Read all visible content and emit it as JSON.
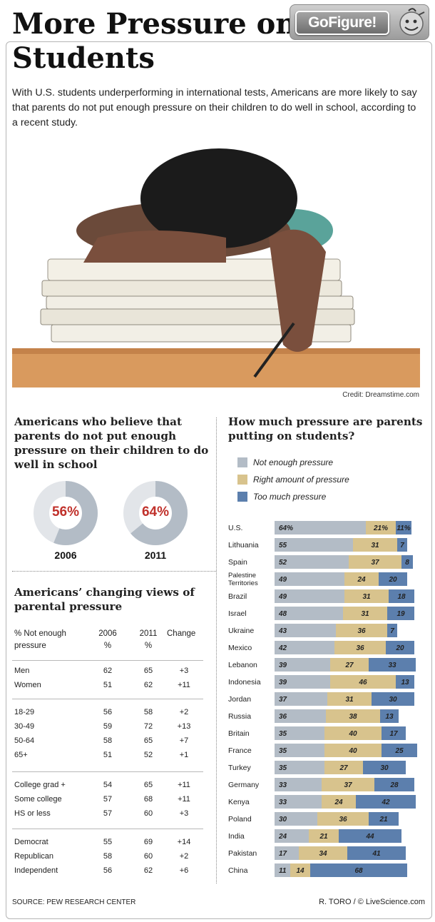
{
  "header": {
    "title": "More Pressure on Students",
    "badge": "GoFigure!",
    "intro": "With U.S. students underperforming in international tests, Americans are more likely to say that parents do not put enough pressure on their children to do well in school, according to a recent study.",
    "photo_credit": "Credit: Dreamstime.com"
  },
  "donuts": {
    "title": "Americans who believe that parents do not put enough pressure on their children to do well in school",
    "items": [
      {
        "year": "2006",
        "value": 56,
        "label": "56%"
      },
      {
        "year": "2011",
        "value": 64,
        "label": "64%"
      }
    ]
  },
  "table": {
    "title": "Americans’ changing views of parental pressure",
    "headers": {
      "label_line1": "% Not enough",
      "label_line2": "pressure",
      "col1_line1": "2006",
      "col1_line2": "%",
      "col2_line1": "2011",
      "col2_line2": "%",
      "col3": "Change"
    },
    "groups": [
      [
        {
          "label": "Men",
          "v2006": "62",
          "v2011": "65",
          "change": "+3"
        },
        {
          "label": "Women",
          "v2006": "51",
          "v2011": "62",
          "change": "+11"
        }
      ],
      [
        {
          "label": "18-29",
          "v2006": "56",
          "v2011": "58",
          "change": "+2"
        },
        {
          "label": "30-49",
          "v2006": "59",
          "v2011": "72",
          "change": "+13"
        },
        {
          "label": "50-64",
          "v2006": "58",
          "v2011": "65",
          "change": "+7"
        },
        {
          "label": "65+",
          "v2006": "51",
          "v2011": "52",
          "change": "+1"
        }
      ],
      [
        {
          "label": "College grad +",
          "v2006": "54",
          "v2011": "65",
          "change": "+11"
        },
        {
          "label": "Some college",
          "v2006": "57",
          "v2011": "68",
          "change": "+11"
        },
        {
          "label": "HS or less",
          "v2006": "57",
          "v2011": "60",
          "change": "+3"
        }
      ],
      [
        {
          "label": "Democrat",
          "v2006": "55",
          "v2011": "69",
          "change": "+14"
        },
        {
          "label": "Republican",
          "v2006": "58",
          "v2011": "60",
          "change": "+2"
        },
        {
          "label": "Independent",
          "v2006": "56",
          "v2011": "62",
          "change": "+6"
        }
      ]
    ]
  },
  "legend": {
    "items": [
      {
        "label": "Not enough pressure",
        "color": "#b3bcc6"
      },
      {
        "label": "Right amount of pressure",
        "color": "#d8c38d"
      },
      {
        "label": "Too much pressure",
        "color": "#5c7fad"
      }
    ]
  },
  "chart_data": {
    "type": "bar",
    "stacked": true,
    "orientation": "horizontal",
    "title": "How much pressure are parents putting on students?",
    "categories": [
      "U.S.",
      "Lithuania",
      "Spain",
      "Palestine Territories",
      "Brazil",
      "Israel",
      "Ukraine",
      "Mexico",
      "Lebanon",
      "Indonesia",
      "Jordan",
      "Russia",
      "Britain",
      "France",
      "Turkey",
      "Germany",
      "Kenya",
      "Poland",
      "India",
      "Pakistan",
      "China"
    ],
    "series": [
      {
        "name": "Not enough pressure",
        "color": "#b3bcc6",
        "values": [
          64,
          55,
          52,
          49,
          49,
          48,
          43,
          42,
          39,
          39,
          37,
          36,
          35,
          35,
          35,
          33,
          33,
          30,
          24,
          17,
          11
        ]
      },
      {
        "name": "Right amount of pressure",
        "color": "#d8c38d",
        "values": [
          21,
          31,
          37,
          24,
          31,
          31,
          36,
          36,
          27,
          46,
          31,
          38,
          40,
          40,
          27,
          37,
          24,
          36,
          21,
          34,
          14
        ]
      },
      {
        "name": "Too much pressure",
        "color": "#5c7fad",
        "values": [
          11,
          7,
          8,
          20,
          18,
          19,
          7,
          20,
          33,
          13,
          30,
          13,
          17,
          25,
          30,
          28,
          42,
          21,
          44,
          41,
          68
        ]
      }
    ],
    "value_labels": {
      "U.S.": [
        "64%",
        "21%",
        "11%"
      ]
    },
    "xlim": [
      0,
      100
    ]
  },
  "footer": {
    "source": "SOURCE: PEW RESEARCH CENTER",
    "byline": "R. TORO / © LiveScience.com"
  }
}
